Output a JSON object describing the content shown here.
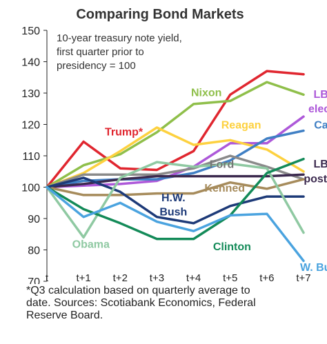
{
  "chart_data": {
    "type": "line",
    "title": "Comparing Bond Markets",
    "subtitle": [
      "10-year treasury note yield,",
      "first quarter prior to",
      "presidency = 100"
    ],
    "footnote": [
      "*Q3 calculation based on quarterly average to",
      "date. Sources: Scotiabank Economics, Federal",
      "Reserve Board."
    ],
    "x": [
      "t",
      "t+1",
      "t+2",
      "t+3",
      "t+4",
      "t+5",
      "t+6",
      "t+7"
    ],
    "yticks": [
      70,
      80,
      90,
      100,
      110,
      120,
      130,
      140,
      150
    ],
    "ylim": [
      70,
      150
    ],
    "grid": false,
    "series": [
      {
        "name": "Trump*",
        "color": "#e0262f",
        "values": [
          100,
          114.5,
          106,
          105.5,
          111.5,
          129.5,
          137,
          136
        ]
      },
      {
        "name": "Nixon",
        "color": "#8fbf4a",
        "values": [
          100,
          107,
          110.5,
          117.5,
          126.5,
          127.5,
          133.5,
          129.5
        ]
      },
      {
        "name": "LBJ - elected",
        "color": "#ad58d9",
        "values": [
          100,
          100.5,
          101,
          102,
          106.5,
          114,
          114,
          122.5
        ]
      },
      {
        "name": "Reagan",
        "color": "#fdd13f",
        "values": [
          100,
          104.5,
          111.5,
          119,
          113.5,
          115,
          112,
          105
        ]
      },
      {
        "name": "Carter",
        "color": "#3f7fc4",
        "values": [
          100,
          102,
          102.5,
          102.5,
          104.5,
          108.5,
          115.5,
          118
        ]
      },
      {
        "name": "Ford",
        "color": "#8a8a8a",
        "values": [
          100,
          104,
          104,
          104,
          106,
          110,
          106.5,
          102.5
        ]
      },
      {
        "name": "LBJ - post JFK",
        "color": "#3c2a4f",
        "values": [
          100,
          101,
          102.5,
          103.5,
          103.5,
          103.5,
          103.5,
          104
        ]
      },
      {
        "name": "Kennedy",
        "color": "#a68b5b",
        "values": [
          100,
          97.5,
          97.5,
          98,
          98,
          101.5,
          99.5,
          102.5
        ]
      },
      {
        "name": "H.W. Bush",
        "color": "#1d3a78",
        "values": [
          100,
          103,
          98.5,
          90.5,
          88.5,
          94,
          97,
          97
        ]
      },
      {
        "name": "Obama",
        "color": "#8fc9a2",
        "values": [
          100,
          84,
          103,
          108,
          106.5,
          107.5,
          106,
          85.5
        ]
      },
      {
        "name": "Clinton",
        "color": "#138a58",
        "values": [
          100,
          93,
          88.5,
          83.5,
          83.5,
          91,
          104.5,
          109
        ]
      },
      {
        "name": "W. Bush",
        "color": "#4aa3df",
        "values": [
          100,
          90.5,
          95,
          89,
          86,
          91,
          91.5,
          76.5
        ]
      }
    ],
    "labels": [
      {
        "text": "Trump*",
        "color": "#e0262f",
        "x": 2.1,
        "y": 116.5,
        "anchor": "middle"
      },
      {
        "text": "Nixon",
        "color": "#8fbf4a",
        "x": 4.35,
        "y": 129,
        "anchor": "middle"
      },
      {
        "text": "LBJ -",
        "color": "#ad58d9",
        "x": 7.65,
        "y": 128.5,
        "anchor": "middle"
      },
      {
        "text": "elected",
        "color": "#ad58d9",
        "x": 7.65,
        "y": 123.8,
        "anchor": "middle"
      },
      {
        "text": "Reagan",
        "color": "#fdd13f",
        "x": 5.3,
        "y": 118.7,
        "anchor": "middle"
      },
      {
        "text": "Carter",
        "color": "#3f7fc4",
        "x": 7.73,
        "y": 118.7,
        "anchor": "middle"
      },
      {
        "text": "Ford",
        "color": "#777777",
        "x": 4.77,
        "y": 106.1,
        "anchor": "middle"
      },
      {
        "text": "LBJ -",
        "color": "#3c2a4f",
        "x": 7.65,
        "y": 106.3,
        "anchor": "middle"
      },
      {
        "text": "Kenned",
        "color": "#a68b5b",
        "x": 4.85,
        "y": 98.6,
        "anchor": "middle"
      },
      {
        "text": "post JFK",
        "color": "#3c2a4f",
        "x": 7.65,
        "y": 101.5,
        "anchor": "middle"
      },
      {
        "text": "H.W.",
        "color": "#1d3a78",
        "x": 3.45,
        "y": 95.5,
        "anchor": "middle"
      },
      {
        "text": "Bush",
        "color": "#1d3a78",
        "x": 3.45,
        "y": 91,
        "anchor": "middle"
      },
      {
        "text": "Obama",
        "color": "#8fc9a2",
        "x": 1.2,
        "y": 80.7,
        "anchor": "middle"
      },
      {
        "text": "Clinton",
        "color": "#138a58",
        "x": 5.05,
        "y": 79.9,
        "anchor": "middle"
      },
      {
        "text": "W. Bush",
        "color": "#4aa3df",
        "x": 7.5,
        "y": 73.3,
        "anchor": "middle"
      }
    ]
  }
}
